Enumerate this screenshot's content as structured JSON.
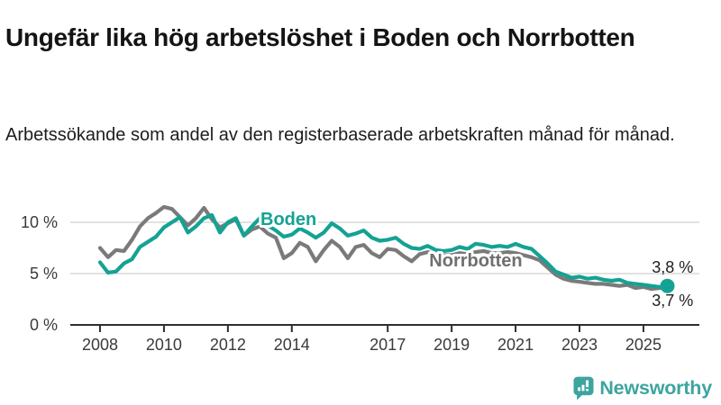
{
  "header": {
    "title": "Ungefär lika hög arbetslöshet i Boden och Norrbotten",
    "subtitle": "Arbetssökande som andel av den registerbaserade arbetskraften månad för månad."
  },
  "chart_data": {
    "type": "line",
    "title": "Ungefär lika hög arbetslöshet i Boden och Norrbotten",
    "xlabel": "",
    "ylabel": "",
    "grid": "horizontal",
    "legend_position": "inline-series-labels",
    "xlim": [
      2007.07,
      2026.75
    ],
    "ylim": [
      0,
      14.1
    ],
    "x": [
      2008,
      2008.25,
      2008.5,
      2008.75,
      2009,
      2009.25,
      2009.5,
      2009.75,
      2010,
      2010.25,
      2010.5,
      2010.75,
      2011,
      2011.25,
      2011.5,
      2011.75,
      2012,
      2012.25,
      2012.5,
      2012.75,
      2013,
      2013.25,
      2013.5,
      2013.75,
      2014,
      2014.25,
      2014.5,
      2014.75,
      2015,
      2015.25,
      2015.5,
      2015.75,
      2016,
      2016.25,
      2016.5,
      2016.75,
      2017,
      2017.25,
      2017.5,
      2017.75,
      2018,
      2018.25,
      2018.5,
      2018.75,
      2019,
      2019.25,
      2019.5,
      2019.75,
      2020,
      2020.25,
      2020.5,
      2020.75,
      2021,
      2021.25,
      2021.5,
      2021.75,
      2022,
      2022.25,
      2022.5,
      2022.75,
      2023,
      2023.25,
      2023.5,
      2023.75,
      2024,
      2024.25,
      2024.5,
      2024.75,
      2025,
      2025.25,
      2025.5,
      2025.75
    ],
    "series": [
      {
        "name": "Boden",
        "color": "#14a294",
        "label_x": 2013.02,
        "label_y": 9.74,
        "end_label": "3,8 %",
        "end_value": 3.8,
        "values": [
          6.1,
          5.1,
          5.2,
          6.0,
          6.4,
          7.6,
          8.1,
          8.6,
          9.5,
          10.0,
          10.5,
          9.0,
          9.6,
          10.4,
          10.7,
          9.0,
          10.0,
          10.4,
          8.7,
          9.6,
          10.4,
          9.7,
          9.2,
          8.6,
          8.8,
          9.4,
          9.0,
          8.5,
          9.0,
          9.9,
          9.4,
          8.7,
          8.9,
          9.2,
          8.5,
          8.2,
          8.3,
          8.5,
          7.9,
          7.5,
          7.4,
          7.7,
          7.3,
          7.2,
          7.3,
          7.6,
          7.4,
          7.9,
          7.8,
          7.6,
          7.7,
          7.6,
          7.9,
          7.6,
          7.4,
          6.7,
          6.0,
          5.2,
          4.9,
          4.6,
          4.7,
          4.5,
          4.6,
          4.4,
          4.3,
          4.4,
          4.1,
          4.0,
          3.9,
          3.8,
          3.7,
          3.8
        ]
      },
      {
        "name": "Norrbotten",
        "color": "#7a7a7a",
        "label_color": "#6f6f6f",
        "label_x": 2018.3,
        "label_y": 5.7,
        "end_label": "3,7 %",
        "end_value": 3.7,
        "values": [
          7.5,
          6.6,
          7.3,
          7.2,
          8.3,
          9.6,
          10.4,
          10.9,
          11.5,
          11.3,
          10.5,
          9.7,
          10.4,
          11.4,
          10.3,
          9.5,
          9.9,
          10.3,
          8.7,
          9.3,
          9.6,
          8.9,
          8.5,
          6.5,
          7.0,
          8.0,
          7.6,
          6.2,
          7.3,
          8.2,
          7.6,
          6.5,
          7.6,
          7.8,
          7.0,
          6.6,
          7.4,
          7.3,
          6.7,
          6.2,
          6.9,
          7.1,
          6.9,
          6.8,
          6.8,
          7.0,
          6.9,
          7.1,
          7.2,
          7.0,
          7.0,
          7.1,
          7.0,
          6.8,
          6.6,
          6.3,
          5.6,
          4.9,
          4.5,
          4.3,
          4.2,
          4.1,
          4.0,
          4.0,
          3.9,
          3.8,
          3.9,
          3.6,
          3.7,
          3.5,
          3.6,
          3.7
        ]
      }
    ],
    "yticks": [
      {
        "value": 0,
        "label": "0 %"
      },
      {
        "value": 5,
        "label": "5 %"
      },
      {
        "value": 10,
        "label": "10 %"
      }
    ],
    "xticks": [
      {
        "value": 2008,
        "label": "2008"
      },
      {
        "value": 2010,
        "label": "2010"
      },
      {
        "value": 2012,
        "label": "2012"
      },
      {
        "value": 2014,
        "label": "2014"
      },
      {
        "value": 2017,
        "label": "2017"
      },
      {
        "value": 2019,
        "label": "2019"
      },
      {
        "value": 2021,
        "label": "2021"
      },
      {
        "value": 2023,
        "label": "2023"
      },
      {
        "value": 2025,
        "label": "2025"
      }
    ],
    "annotations": [
      {
        "text": "3,8 %",
        "x": 2025.26,
        "y": 5.1
      },
      {
        "text": "3,7 %",
        "x": 2025.26,
        "y": 1.85
      }
    ],
    "colors": {
      "grid": "#d9d9d9",
      "axis": "#2e2e2e",
      "axis_text": "#3a3a3a",
      "annotation": "#1f1f1f",
      "halo": "#ffffff"
    }
  },
  "footer": {
    "brand": "Newsworthy",
    "brand_color": "#3da49f"
  }
}
